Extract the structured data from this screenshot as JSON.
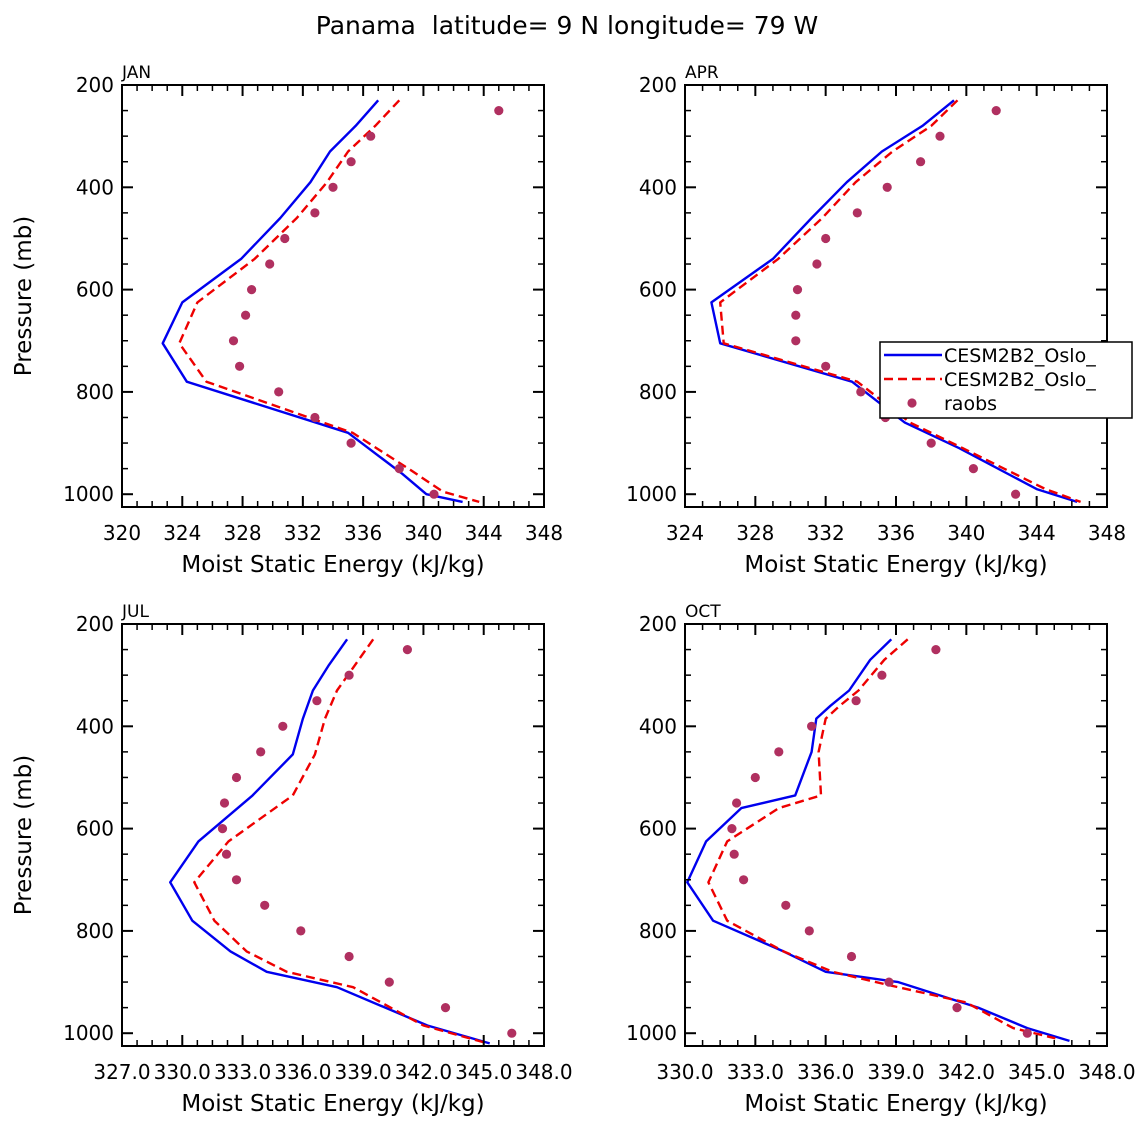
{
  "title": "Panama  latitude= 9 N longitude= 79 W",
  "chart_data": [
    {
      "type": "line",
      "panel_label": "JAN",
      "xlabel": "Moist Static Energy (kJ/kg)",
      "ylabel": "Pressure (mb)",
      "xlim": [
        320,
        348
      ],
      "ylim": [
        1025,
        200
      ],
      "xticks": [
        320,
        324,
        328,
        332,
        336,
        340,
        344,
        348
      ],
      "xtick_labels": [
        "320",
        "324",
        "328",
        "332",
        "336",
        "340",
        "344",
        "348"
      ],
      "yticks": [
        200,
        400,
        600,
        800,
        1000
      ],
      "ytick_labels": [
        "200",
        "400",
        "600",
        "800",
        "1000"
      ],
      "series": [
        {
          "name": "CESM2B2_Oslo_",
          "style": "solid",
          "color": "#0000ee",
          "x": [
            337.0,
            335.5,
            333.8,
            332.5,
            330.5,
            327.9,
            324.0,
            322.7,
            324.3,
            335.0,
            338.6,
            340.2,
            342.6
          ],
          "y": [
            230,
            280,
            330,
            390,
            460,
            540,
            625,
            705,
            780,
            880,
            960,
            1000,
            1015
          ]
        },
        {
          "name": "CESM2B2_Oslo_",
          "style": "dashed",
          "color": "#ee0000",
          "x": [
            338.4,
            336.8,
            335.0,
            333.6,
            331.6,
            328.8,
            325.0,
            323.8,
            325.6,
            335.3,
            339.0,
            341.3,
            343.7
          ],
          "y": [
            230,
            280,
            330,
            390,
            460,
            540,
            625,
            705,
            780,
            880,
            950,
            995,
            1015
          ]
        }
      ],
      "points": {
        "name": "raobs",
        "color": "#b03060",
        "x": [
          345.0,
          336.5,
          335.2,
          334.0,
          332.8,
          330.8,
          329.8,
          328.6,
          328.2,
          327.4,
          327.8,
          330.4,
          332.8,
          335.2,
          338.4,
          340.7
        ],
        "y": [
          250,
          300,
          350,
          400,
          450,
          500,
          550,
          600,
          650,
          700,
          750,
          800,
          850,
          900,
          950,
          1000
        ]
      },
      "legend": null
    },
    {
      "type": "line",
      "panel_label": "APR",
      "xlabel": "Moist Static Energy (kJ/kg)",
      "ylabel": "",
      "xlim": [
        324,
        348
      ],
      "ylim": [
        1025,
        200
      ],
      "xticks": [
        324,
        328,
        332,
        336,
        340,
        344,
        348
      ],
      "xtick_labels": [
        "324",
        "328",
        "332",
        "336",
        "340",
        "344",
        "348"
      ],
      "yticks": [
        200,
        400,
        600,
        800,
        1000
      ],
      "ytick_labels": [
        "200",
        "400",
        "600",
        "800",
        "1000"
      ],
      "series": [
        {
          "name": "CESM2B2_Oslo_",
          "style": "solid",
          "color": "#0000ee",
          "x": [
            339.3,
            337.5,
            335.2,
            333.2,
            331.2,
            329.0,
            325.5,
            326.0,
            333.5,
            336.5,
            339.6,
            344.0,
            346.3
          ],
          "y": [
            230,
            280,
            330,
            390,
            460,
            540,
            625,
            705,
            780,
            860,
            910,
            990,
            1015
          ]
        },
        {
          "name": "CESM2B2_Oslo_",
          "style": "dashed",
          "color": "#ee0000",
          "x": [
            339.5,
            338.0,
            335.8,
            333.7,
            331.8,
            329.3,
            326.0,
            326.2,
            333.8,
            336.8,
            339.8,
            344.5,
            346.5
          ],
          "y": [
            230,
            280,
            330,
            390,
            460,
            540,
            625,
            705,
            780,
            860,
            910,
            990,
            1015
          ]
        }
      ],
      "points": {
        "name": "raobs",
        "color": "#b03060",
        "x": [
          341.7,
          338.5,
          337.4,
          335.5,
          333.8,
          332.0,
          331.5,
          330.4,
          330.3,
          330.3,
          332.0,
          334.0,
          335.4,
          338.0,
          340.4,
          342.8
        ],
        "y": [
          250,
          300,
          350,
          400,
          450,
          500,
          550,
          600,
          650,
          700,
          750,
          800,
          850,
          900,
          950,
          1000
        ]
      },
      "legend": {
        "placement": "right",
        "entries": [
          {
            "label": "CESM2B2_Oslo_",
            "style": "solid",
            "color": "#0000ee"
          },
          {
            "label": "CESM2B2_Oslo_",
            "style": "dashed",
            "color": "#ee0000"
          },
          {
            "label": "raobs",
            "style": "marker",
            "color": "#b03060"
          }
        ]
      }
    },
    {
      "type": "line",
      "panel_label": "JUL",
      "xlabel": "Moist Static Energy (kJ/kg)",
      "ylabel": "Pressure (mb)",
      "xlim": [
        327.0,
        348.0
      ],
      "ylim": [
        1025,
        200
      ],
      "xticks": [
        327,
        330,
        333,
        336,
        339,
        342,
        345,
        348
      ],
      "xtick_labels": [
        "327.0",
        "330.0",
        "333.0",
        "336.0",
        "339.0",
        "342.0",
        "345.0",
        "348.0"
      ],
      "yticks": [
        200,
        400,
        600,
        800,
        1000
      ],
      "ytick_labels": [
        "200",
        "400",
        "600",
        "800",
        "1000"
      ],
      "series": [
        {
          "name": "CESM2B2_Oslo_",
          "style": "solid",
          "color": "#0000ee",
          "x": [
            338.2,
            337.3,
            336.5,
            336.0,
            335.5,
            333.5,
            330.8,
            329.4,
            330.5,
            332.4,
            334.2,
            337.7,
            342.2,
            345.3
          ],
          "y": [
            230,
            280,
            330,
            385,
            455,
            535,
            625,
            705,
            780,
            840,
            880,
            910,
            985,
            1020
          ]
        },
        {
          "name": "CESM2B2_Oslo_",
          "style": "dashed",
          "color": "#ee0000",
          "x": [
            339.5,
            338.6,
            337.7,
            337.1,
            336.6,
            335.5,
            332.3,
            330.6,
            331.6,
            333.2,
            335.2,
            338.5,
            342.0,
            345.2
          ],
          "y": [
            230,
            280,
            330,
            385,
            455,
            535,
            625,
            705,
            780,
            840,
            880,
            910,
            985,
            1020
          ]
        }
      ],
      "points": {
        "name": "raobs",
        "color": "#b03060",
        "x": [
          341.2,
          338.3,
          336.7,
          335.0,
          333.9,
          332.7,
          332.1,
          332.0,
          332.2,
          332.7,
          334.1,
          335.9,
          338.3,
          340.3,
          343.1,
          346.4
        ],
        "y": [
          250,
          300,
          350,
          400,
          450,
          500,
          550,
          600,
          650,
          700,
          750,
          800,
          850,
          900,
          950,
          1000
        ]
      },
      "legend": null
    },
    {
      "type": "line",
      "panel_label": "OCT",
      "xlabel": "Moist Static Energy (kJ/kg)",
      "ylabel": "",
      "xlim": [
        330.0,
        348.0
      ],
      "ylim": [
        1025,
        200
      ],
      "xticks": [
        330,
        333,
        336,
        339,
        342,
        345,
        348
      ],
      "xtick_labels": [
        "330.0",
        "333.0",
        "336.0",
        "339.0",
        "342.0",
        "345.0",
        "348.0"
      ],
      "yticks": [
        200,
        400,
        600,
        800,
        1000
      ],
      "ytick_labels": [
        "200",
        "400",
        "600",
        "800",
        "1000"
      ],
      "series": [
        {
          "name": "CESM2B2_Oslo_",
          "style": "solid",
          "color": "#0000ee",
          "x": [
            338.8,
            337.9,
            337.0,
            336.2,
            335.6,
            335.4,
            334.7,
            332.4,
            330.9,
            330.1,
            331.2,
            334.2,
            336.0,
            339.1,
            342.5,
            344.6,
            346.4
          ],
          "y": [
            230,
            270,
            330,
            360,
            385,
            450,
            535,
            560,
            625,
            705,
            780,
            840,
            880,
            900,
            950,
            990,
            1015
          ]
        },
        {
          "name": "CESM2B2_Oslo_",
          "style": "dashed",
          "color": "#ee0000",
          "x": [
            339.5,
            338.5,
            337.4,
            336.6,
            336.0,
            335.7,
            335.8,
            334.0,
            331.8,
            331.0,
            331.8,
            334.2,
            336.3,
            338.6,
            342.0,
            344.0,
            345.8
          ],
          "y": [
            230,
            270,
            330,
            360,
            385,
            450,
            535,
            560,
            625,
            705,
            780,
            840,
            880,
            905,
            940,
            990,
            1010
          ]
        }
      ],
      "points": {
        "name": "raobs",
        "color": "#b03060",
        "x": [
          340.7,
          338.4,
          337.3,
          335.4,
          334.0,
          333.0,
          332.2,
          332.0,
          332.1,
          332.5,
          334.3,
          335.3,
          337.1,
          338.7,
          341.6,
          344.6
        ],
        "y": [
          250,
          300,
          350,
          400,
          450,
          500,
          550,
          600,
          650,
          700,
          750,
          800,
          850,
          900,
          950,
          1000
        ]
      },
      "legend": null
    }
  ]
}
